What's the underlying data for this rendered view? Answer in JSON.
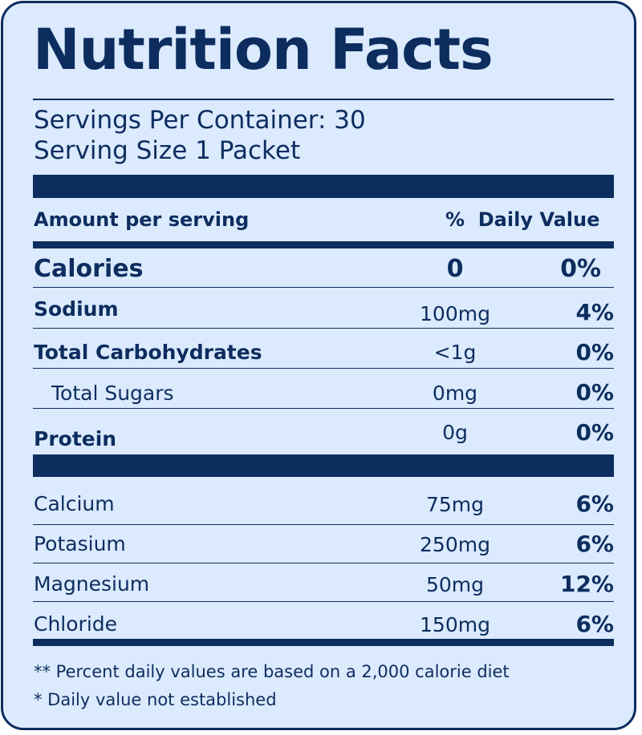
{
  "title": "Nutrition Facts",
  "servings_per_container": "Servings Per Container: 30",
  "serving_size": "Serving Size 1 Packet",
  "header": {
    "amount_per_serving": "Amount per serving",
    "daily_value": "%  Daily Value"
  },
  "calories": {
    "name": "Calories",
    "amount": "0",
    "percent": "0%"
  },
  "nutrients": [
    {
      "name": "Sodium",
      "amount": "100mg",
      "percent": "4%"
    },
    {
      "name": "Total Carbohydrates",
      "amount": "<1g",
      "percent": "0%"
    },
    {
      "name": "Total Sugars",
      "amount": "0mg",
      "percent": "0%"
    },
    {
      "name": "Protein",
      "amount": "0g",
      "percent": "0%"
    }
  ],
  "minerals": [
    {
      "name": "Calcium",
      "amount": "75mg",
      "percent": "6%"
    },
    {
      "name": "Potasium",
      "amount": "250mg",
      "percent": "6%"
    },
    {
      "name": "Magnesium",
      "amount": "50mg",
      "percent": "12%"
    },
    {
      "name": "Chloride",
      "amount": "150mg",
      "percent": "6%"
    }
  ],
  "footnotes": [
    "** Percent daily values are based on a 2,000 calorie diet",
    "* Daily value not established"
  ],
  "colors": {
    "ink": "#0d2d5f",
    "background": "#dbeafd"
  }
}
